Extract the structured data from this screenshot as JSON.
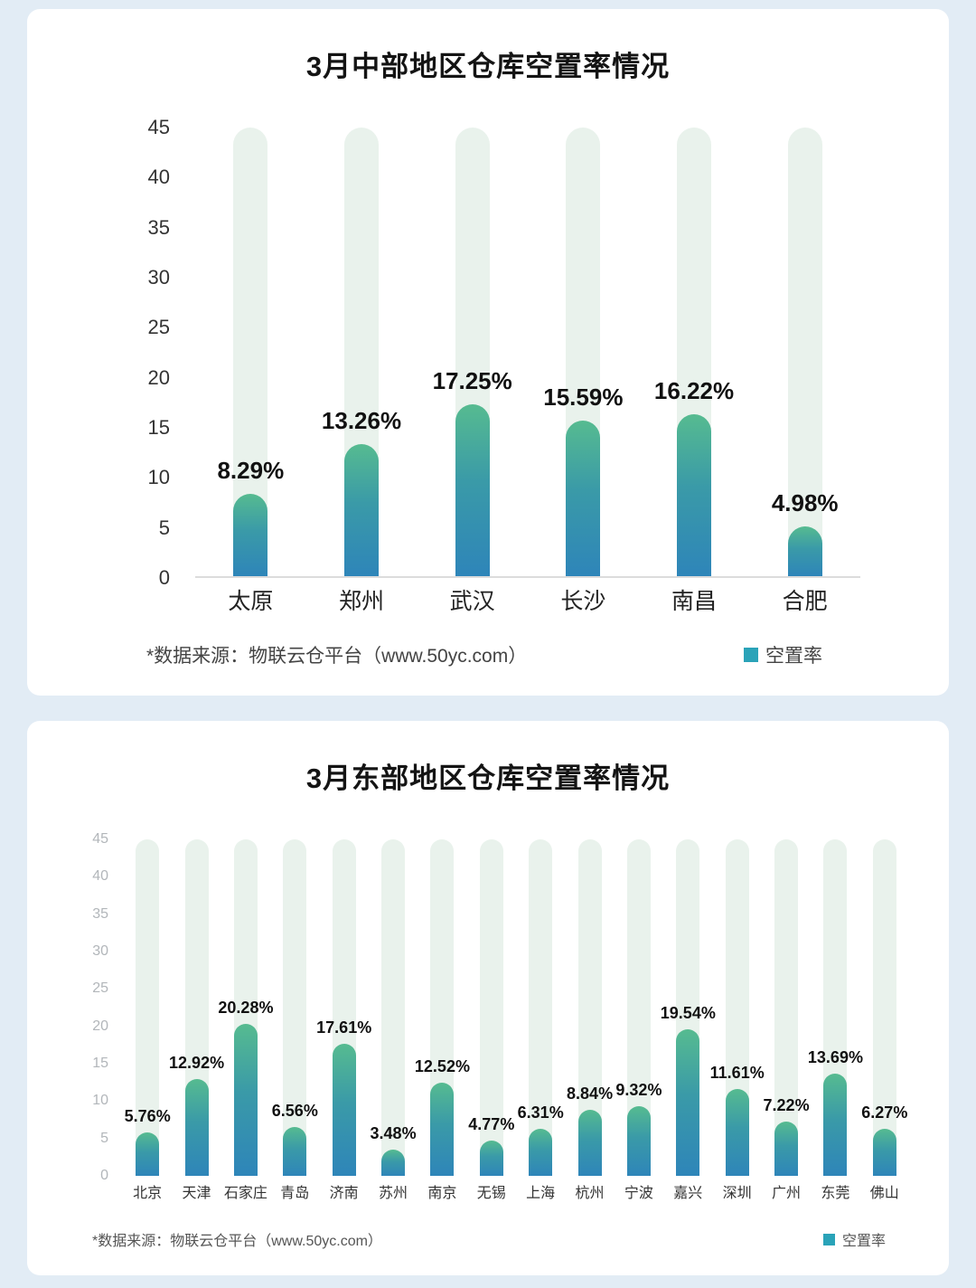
{
  "page": {
    "background": "#e2ecf5"
  },
  "chart_data": [
    {
      "type": "bar",
      "title": "3月中部地区仓库空置率情况",
      "categories": [
        "太原",
        "郑州",
        "武汉",
        "长沙",
        "南昌",
        "合肥"
      ],
      "values": [
        8.29,
        13.26,
        17.25,
        15.59,
        16.22,
        4.98
      ],
      "value_labels": [
        "8.29%",
        "13.26%",
        "17.25%",
        "15.59%",
        "16.22%",
        "4.98%"
      ],
      "ylim": [
        0,
        45
      ],
      "yticks": [
        45,
        40,
        35,
        30,
        25,
        20,
        15,
        10,
        5,
        0
      ],
      "xlabel": "",
      "ylabel": "",
      "grid": false,
      "legend": {
        "label": "空置率",
        "color": "#2aa3b8",
        "position": "bottom-right"
      },
      "source": "*数据来源：物联云仓平台（www.50yc.com）",
      "bar_color_top": "#56bb90",
      "bar_color_bottom": "#2e85b9",
      "track_color": "#e9f2ec"
    },
    {
      "type": "bar",
      "title": "3月东部地区仓库空置率情况",
      "categories": [
        "北京",
        "天津",
        "石家庄",
        "青岛",
        "济南",
        "苏州",
        "南京",
        "无锡",
        "上海",
        "杭州",
        "宁波",
        "嘉兴",
        "深圳",
        "广州",
        "东莞",
        "佛山"
      ],
      "values": [
        5.76,
        12.92,
        20.28,
        6.56,
        17.61,
        3.48,
        12.52,
        4.77,
        6.31,
        8.84,
        9.32,
        19.54,
        11.61,
        7.22,
        13.69,
        6.27
      ],
      "value_labels": [
        "5.76%",
        "12.92%",
        "20.28%",
        "6.56%",
        "17.61%",
        "3.48%",
        "12.52%",
        "4.77%",
        "6.31%",
        "8.84%",
        "9.32%",
        "19.54%",
        "11.61%",
        "7.22%",
        "13.69%",
        "6.27%"
      ],
      "ylim": [
        0,
        45
      ],
      "yticks": [
        45,
        40,
        35,
        30,
        25,
        20,
        15,
        10,
        5,
        0
      ],
      "xlabel": "",
      "ylabel": "",
      "grid": false,
      "legend": {
        "label": "空置率",
        "color": "#2aa3b8",
        "position": "bottom-right"
      },
      "source": "*数据来源：物联云仓平台（www.50yc.com）",
      "bar_color_top": "#56bb90",
      "bar_color_bottom": "#2e85b9",
      "track_color": "#e9f2ec"
    }
  ]
}
